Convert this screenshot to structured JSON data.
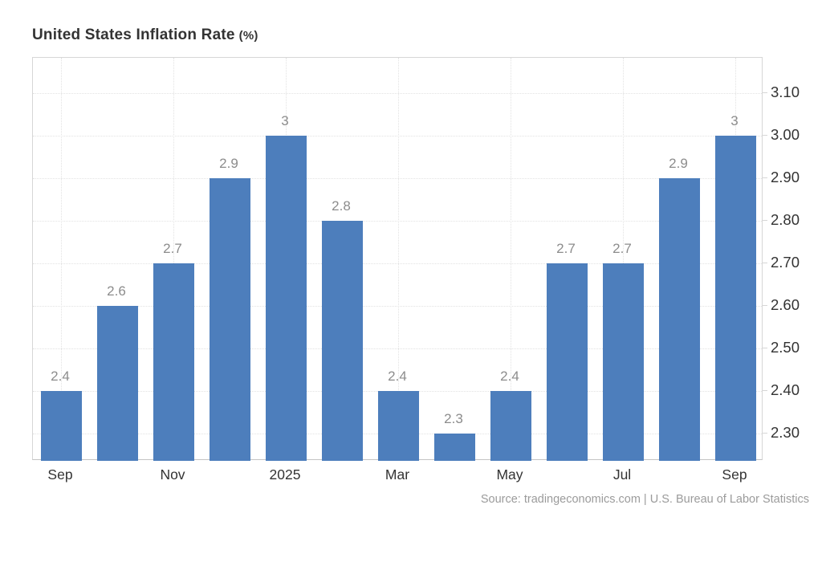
{
  "header": {
    "title": "United States Inflation Rate",
    "unit": "(%)"
  },
  "source_note": "Source: tradingeconomics.com | U.S. Bureau of Labor Statistics",
  "chart_data": {
    "type": "bar",
    "title": "United States Inflation Rate (%)",
    "xlabel": "",
    "ylabel": "",
    "values": [
      2.4,
      2.6,
      2.7,
      2.9,
      3,
      2.8,
      2.4,
      2.3,
      2.4,
      2.7,
      2.7,
      2.9,
      3
    ],
    "value_labels": [
      "2.4",
      "2.6",
      "2.7",
      "2.9",
      "3",
      "2.8",
      "2.4",
      "2.3",
      "2.4",
      "2.7",
      "2.7",
      "2.9",
      "3"
    ],
    "x_tick_indices": [
      0,
      2,
      4,
      6,
      8,
      10,
      12
    ],
    "x_tick_labels": [
      "Sep",
      "Nov",
      "2025",
      "Mar",
      "May",
      "Jul",
      "Sep"
    ],
    "y_ticks": [
      2.3,
      2.4,
      2.5,
      2.6,
      2.7,
      2.8,
      2.9,
      3.0,
      3.1
    ],
    "y_tick_labels": [
      "2.30",
      "2.40",
      "2.50",
      "2.60",
      "2.70",
      "2.80",
      "2.90",
      "3.00",
      "3.10"
    ],
    "ylim": [
      2.236,
      3.183
    ],
    "y_axis_position": "right",
    "grid": "dotted",
    "legend": "none",
    "bar_color": "#4d7ebc",
    "axis_label_color": "#333333",
    "value_label_color": "#8c8c8c"
  }
}
